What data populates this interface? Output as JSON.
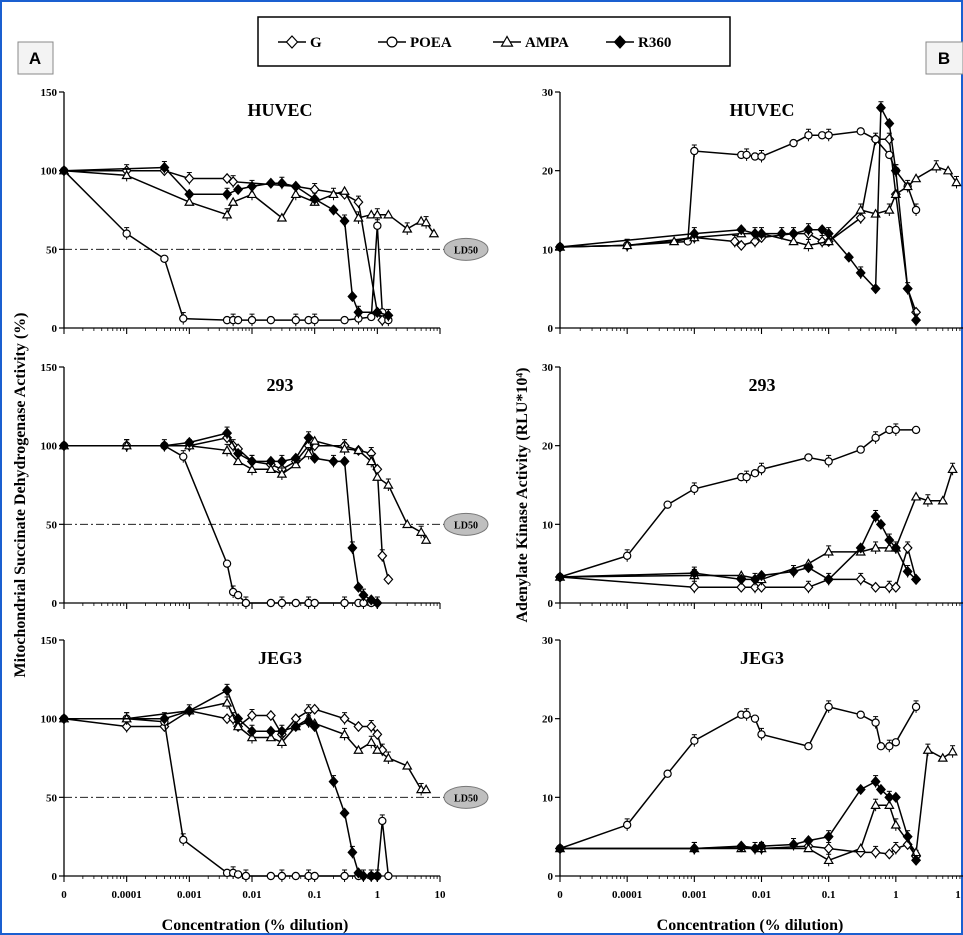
{
  "figure": {
    "border_color": "#1a5fd0",
    "panel_a_label": "A",
    "panel_b_label": "B",
    "left_ylabel": "Mitochondrial Succinate Dehydrogenase Activity (%)",
    "right_ylabel": "Adenylate Kinase Activity (RLU*10⁴)",
    "xlabel": "Concentration (% dilution)",
    "ld50_label": "LD50"
  },
  "legend": [
    {
      "name": "G",
      "marker": "diamond-open"
    },
    {
      "name": "POEA",
      "marker": "circle-open"
    },
    {
      "name": "AMPA",
      "marker": "triangle-open"
    },
    {
      "name": "R360",
      "marker": "diamond-filled"
    }
  ],
  "chart_data": [
    {
      "type": "line",
      "panel": "A",
      "title": "HUVEC",
      "xscale": "log-with-zero",
      "xticks": [
        "0",
        "0.0001",
        "0.001",
        "0.01",
        "0.1",
        "1",
        "10"
      ],
      "ylim": [
        0,
        150
      ],
      "yticks": [
        0,
        50,
        100,
        150
      ],
      "ld50": 50,
      "series": [
        {
          "name": "G",
          "x": [
            0,
            0.0001,
            0.0004,
            0.001,
            0.004,
            0.005,
            0.05,
            0.1,
            0.3,
            0.5,
            1.0,
            1.2
          ],
          "y": [
            100,
            100,
            100,
            95,
            95,
            93,
            90,
            88,
            85,
            80,
            10,
            5
          ]
        },
        {
          "name": "POEA",
          "x": [
            0,
            0.0001,
            0.0004,
            0.0008,
            0.004,
            0.005,
            0.006,
            0.01,
            0.02,
            0.05,
            0.08,
            0.1,
            0.3,
            0.5,
            0.8,
            1.0,
            1.2,
            1.5
          ],
          "y": [
            100,
            60,
            44,
            6,
            5,
            5,
            5,
            5,
            5,
            5,
            5,
            5,
            5,
            6,
            7,
            65,
            10,
            5
          ]
        },
        {
          "name": "AMPA",
          "x": [
            0,
            0.0001,
            0.001,
            0.004,
            0.005,
            0.01,
            0.03,
            0.05,
            0.1,
            0.2,
            0.3,
            0.5,
            0.8,
            1.0,
            1.5,
            3,
            5,
            6,
            8
          ],
          "y": [
            100,
            97,
            80,
            72,
            80,
            85,
            70,
            85,
            80,
            85,
            87,
            70,
            72,
            72,
            72,
            63,
            68,
            67,
            60
          ]
        },
        {
          "name": "R360",
          "x": [
            0,
            0.0004,
            0.001,
            0.004,
            0.006,
            0.01,
            0.02,
            0.03,
            0.05,
            0.1,
            0.2,
            0.3,
            0.4,
            0.5,
            1.0,
            1.5
          ],
          "y": [
            100,
            102,
            85,
            85,
            88,
            90,
            92,
            92,
            90,
            82,
            75,
            68,
            20,
            10,
            10,
            8
          ]
        }
      ]
    },
    {
      "type": "line",
      "panel": "A",
      "title": "293",
      "xscale": "log-with-zero",
      "xticks": [
        "0",
        "0.0001",
        "0.001",
        "0.01",
        "0.1",
        "1",
        "10"
      ],
      "ylim": [
        0,
        150
      ],
      "yticks": [
        0,
        50,
        100,
        150
      ],
      "ld50": 50,
      "series": [
        {
          "name": "G",
          "x": [
            0,
            0.0001,
            0.0004,
            0.001,
            0.004,
            0.005,
            0.006,
            0.01,
            0.02,
            0.03,
            0.05,
            0.08,
            0.1,
            0.3,
            0.5,
            0.8,
            1.0,
            1.2,
            1.5
          ],
          "y": [
            100,
            100,
            100,
            100,
            105,
            100,
            98,
            90,
            88,
            85,
            90,
            100,
            100,
            100,
            97,
            95,
            85,
            30,
            15
          ]
        },
        {
          "name": "POEA",
          "x": [
            0,
            0.0001,
            0.0004,
            0.0008,
            0.004,
            0.005,
            0.006,
            0.008,
            0.02,
            0.03,
            0.05,
            0.08,
            0.1,
            0.3,
            0.5,
            0.6,
            0.8
          ],
          "y": [
            100,
            100,
            100,
            93,
            25,
            7,
            5,
            0,
            0,
            0,
            0,
            0,
            0,
            0,
            0,
            0,
            0
          ]
        },
        {
          "name": "AMPA",
          "x": [
            0,
            0.0001,
            0.001,
            0.004,
            0.006,
            0.01,
            0.02,
            0.03,
            0.05,
            0.08,
            0.1,
            0.3,
            0.5,
            0.8,
            1.0,
            1.5,
            3,
            5,
            6
          ],
          "y": [
            100,
            100,
            100,
            97,
            90,
            85,
            85,
            82,
            88,
            95,
            103,
            98,
            97,
            90,
            80,
            75,
            50,
            45,
            40
          ]
        },
        {
          "name": "R360",
          "x": [
            0,
            0.0004,
            0.001,
            0.004,
            0.006,
            0.01,
            0.02,
            0.03,
            0.05,
            0.08,
            0.1,
            0.2,
            0.3,
            0.4,
            0.5,
            0.6,
            0.8,
            1.0
          ],
          "y": [
            100,
            100,
            102,
            108,
            95,
            90,
            90,
            90,
            92,
            105,
            92,
            90,
            90,
            35,
            10,
            5,
            2,
            0
          ]
        }
      ]
    },
    {
      "type": "line",
      "panel": "A",
      "title": "JEG3",
      "xscale": "log-with-zero",
      "xticks": [
        "0",
        "0.0001",
        "0.001",
        "0.01",
        "0.1",
        "1",
        "10"
      ],
      "ylim": [
        0,
        150
      ],
      "yticks": [
        0,
        50,
        100,
        150
      ],
      "ld50": 50,
      "series": [
        {
          "name": "G",
          "x": [
            0,
            0.0001,
            0.0004,
            0.001,
            0.004,
            0.005,
            0.006,
            0.01,
            0.02,
            0.03,
            0.05,
            0.08,
            0.1,
            0.3,
            0.5,
            0.8,
            1.0,
            1.2
          ],
          "y": [
            100,
            95,
            95,
            105,
            100,
            100,
            95,
            102,
            102,
            90,
            100,
            105,
            106,
            100,
            95,
            95,
            90,
            80
          ]
        },
        {
          "name": "POEA",
          "x": [
            0,
            0.0001,
            0.0004,
            0.0008,
            0.004,
            0.005,
            0.006,
            0.008,
            0.02,
            0.03,
            0.05,
            0.08,
            0.1,
            0.3,
            0.5,
            0.8,
            1.0,
            1.2,
            1.5
          ],
          "y": [
            100,
            100,
            98,
            23,
            2,
            2,
            1,
            0,
            0,
            0,
            0,
            0,
            0,
            0,
            0,
            0,
            0,
            35,
            0
          ]
        },
        {
          "name": "AMPA",
          "x": [
            0,
            0.0001,
            0.001,
            0.004,
            0.006,
            0.01,
            0.02,
            0.03,
            0.05,
            0.08,
            0.1,
            0.3,
            0.5,
            0.8,
            1.0,
            1.5,
            3,
            5,
            6
          ],
          "y": [
            100,
            100,
            105,
            110,
            95,
            88,
            88,
            85,
            95,
            100,
            97,
            90,
            80,
            85,
            80,
            75,
            70,
            55,
            55
          ]
        },
        {
          "name": "R360",
          "x": [
            0,
            0.0004,
            0.001,
            0.004,
            0.006,
            0.01,
            0.02,
            0.03,
            0.05,
            0.08,
            0.1,
            0.2,
            0.3,
            0.4,
            0.5,
            0.6,
            0.8,
            1.0
          ],
          "y": [
            100,
            100,
            105,
            118,
            100,
            92,
            92,
            92,
            95,
            98,
            95,
            60,
            40,
            15,
            2,
            0,
            0,
            0
          ]
        }
      ]
    },
    {
      "type": "line",
      "panel": "B",
      "title": "HUVEC",
      "xscale": "log-with-zero",
      "xticks": [
        "0",
        "0.0001",
        "0.001",
        "0.01",
        "0.1",
        "1",
        "1"
      ],
      "ylim": [
        0,
        30
      ],
      "yticks": [
        0,
        10,
        20,
        30
      ],
      "series": [
        {
          "name": "G",
          "x": [
            0,
            0.0001,
            0.001,
            0.004,
            0.005,
            0.008,
            0.01,
            0.03,
            0.05,
            0.08,
            0.1,
            0.3,
            0.5,
            0.8,
            1.0,
            1.5,
            2.0
          ],
          "y": [
            10.3,
            10.5,
            11.5,
            11,
            10.5,
            11,
            11.5,
            12,
            12,
            11,
            11,
            14,
            24,
            24,
            17,
            5,
            2
          ]
        },
        {
          "name": "POEA",
          "x": [
            0,
            0.0001,
            0.0008,
            0.001,
            0.005,
            0.006,
            0.008,
            0.01,
            0.03,
            0.05,
            0.08,
            0.1,
            0.3,
            0.5,
            0.8,
            1.0,
            1.5,
            2.0
          ],
          "y": [
            10.3,
            10.5,
            11,
            22.5,
            22,
            22,
            21.8,
            21.8,
            23.5,
            24.5,
            24.5,
            24.5,
            25,
            24,
            22,
            20,
            18,
            15
          ]
        },
        {
          "name": "AMPA",
          "x": [
            0,
            0.0001,
            0.0005,
            0.001,
            0.005,
            0.01,
            0.03,
            0.05,
            0.1,
            0.3,
            0.5,
            0.8,
            1.0,
            1.5,
            2.0,
            4,
            6,
            8
          ],
          "y": [
            10.3,
            10.5,
            11,
            11.5,
            12,
            12,
            11,
            10.5,
            11,
            15,
            14.5,
            15,
            17,
            18,
            19,
            20.5,
            20,
            18.5
          ]
        },
        {
          "name": "R360",
          "x": [
            0,
            0.001,
            0.005,
            0.008,
            0.01,
            0.02,
            0.03,
            0.05,
            0.08,
            0.1,
            0.2,
            0.3,
            0.5,
            0.6,
            0.8,
            1.0,
            1.5,
            2.0
          ],
          "y": [
            10.3,
            12,
            12.5,
            12,
            12,
            12,
            12,
            12.5,
            12.5,
            12,
            9,
            7,
            5,
            28,
            26,
            20,
            5,
            1
          ]
        }
      ]
    },
    {
      "type": "line",
      "panel": "B",
      "title": "293",
      "xscale": "log-with-zero",
      "xticks": [
        "0",
        "0.0001",
        "0.001",
        "0.01",
        "0.1",
        "1",
        "1"
      ],
      "ylim": [
        0,
        30
      ],
      "yticks": [
        0,
        10,
        20,
        30
      ],
      "series": [
        {
          "name": "G",
          "x": [
            0,
            0.001,
            0.005,
            0.008,
            0.01,
            0.05,
            0.1,
            0.3,
            0.5,
            0.8,
            1.0,
            1.5,
            2.0
          ],
          "y": [
            3.3,
            2,
            2,
            2,
            2,
            2,
            3,
            3,
            2,
            2,
            2,
            7,
            3
          ]
        },
        {
          "name": "POEA",
          "x": [
            0,
            0.0001,
            0.0004,
            0.001,
            0.005,
            0.006,
            0.008,
            0.01,
            0.05,
            0.1,
            0.3,
            0.5,
            0.8,
            1.0,
            2.0
          ],
          "y": [
            3.3,
            6,
            12.5,
            14.5,
            16,
            16,
            16.5,
            17,
            18.5,
            18,
            19.5,
            21,
            22,
            22,
            22
          ]
        },
        {
          "name": "AMPA",
          "x": [
            0,
            0.001,
            0.005,
            0.01,
            0.05,
            0.1,
            0.3,
            0.5,
            0.8,
            1.0,
            2.0,
            3,
            5,
            7
          ],
          "y": [
            3.3,
            3.5,
            3.5,
            3,
            5,
            6.5,
            6.5,
            7,
            7,
            7,
            13.5,
            13,
            13,
            17
          ]
        },
        {
          "name": "R360",
          "x": [
            0,
            0.001,
            0.005,
            0.008,
            0.01,
            0.03,
            0.05,
            0.1,
            0.3,
            0.5,
            0.6,
            0.8,
            1.0,
            1.5,
            2.0
          ],
          "y": [
            3.3,
            3.8,
            3,
            3,
            3.5,
            4,
            4.5,
            3,
            7,
            11,
            10,
            8,
            7,
            4,
            3
          ]
        }
      ]
    },
    {
      "type": "line",
      "panel": "B",
      "title": "JEG3",
      "xscale": "log-with-zero",
      "xticks": [
        "0",
        "0.0001",
        "0.001",
        "0.01",
        "0.1",
        "1",
        "1"
      ],
      "ylim": [
        0,
        30
      ],
      "yticks": [
        0,
        10,
        20,
        30
      ],
      "series": [
        {
          "name": "G",
          "x": [
            0,
            0.001,
            0.005,
            0.01,
            0.05,
            0.1,
            0.3,
            0.5,
            0.8,
            1.0,
            1.5,
            2.0
          ],
          "y": [
            3.5,
            3.5,
            3.8,
            3.5,
            3.8,
            3.5,
            3,
            3,
            2.8,
            3.5,
            4,
            2.5
          ]
        },
        {
          "name": "POEA",
          "x": [
            0,
            0.0001,
            0.0004,
            0.001,
            0.005,
            0.006,
            0.008,
            0.01,
            0.05,
            0.1,
            0.3,
            0.5,
            0.6,
            0.8,
            1.0,
            2.0
          ],
          "y": [
            3.5,
            6.5,
            13,
            17.2,
            20.5,
            20.5,
            20,
            18,
            16.5,
            21.5,
            20.5,
            19.5,
            16.5,
            16.5,
            17,
            21.5
          ]
        },
        {
          "name": "AMPA",
          "x": [
            0,
            0.001,
            0.005,
            0.01,
            0.05,
            0.1,
            0.3,
            0.5,
            0.8,
            1.0,
            2.0,
            3,
            5,
            7
          ],
          "y": [
            3.5,
            3.5,
            3.5,
            3.5,
            3.5,
            2,
            3.5,
            9,
            9,
            6.5,
            3,
            16,
            15,
            15.8
          ]
        },
        {
          "name": "R360",
          "x": [
            0,
            0.001,
            0.005,
            0.008,
            0.01,
            0.03,
            0.05,
            0.1,
            0.3,
            0.5,
            0.6,
            0.8,
            1.0,
            1.5,
            2.0
          ],
          "y": [
            3.5,
            3.5,
            3.7,
            3.5,
            3.8,
            4,
            4.5,
            5,
            11,
            12,
            11,
            10,
            10,
            5,
            2
          ]
        }
      ]
    }
  ]
}
